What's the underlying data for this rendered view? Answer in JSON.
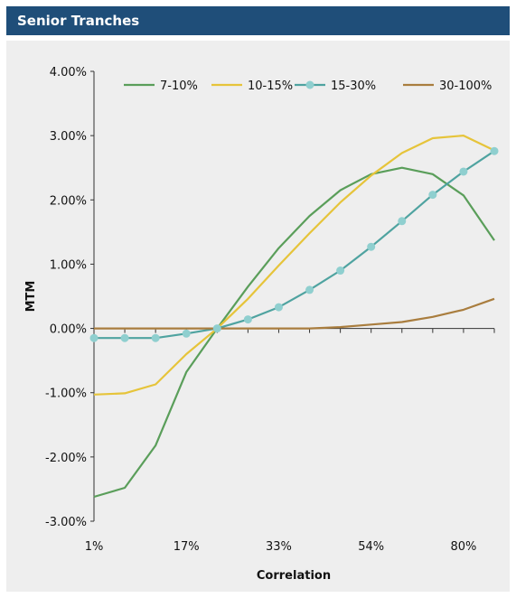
{
  "header": {
    "title": "Senior Tranches"
  },
  "chart_data": {
    "type": "line",
    "xlabel": "Correlation",
    "ylabel": "MTM",
    "y_ticks": [
      "4.00%",
      "3.00%",
      "2.00%",
      "1.00%",
      "0.00%",
      "-1.00%",
      "-2.00%",
      "-3.00%"
    ],
    "y_tick_values": [
      4,
      3,
      2,
      1,
      0,
      -1,
      -2,
      -3
    ],
    "ylim": [
      -3,
      4
    ],
    "x_tick_labels": [
      "1%",
      "17%",
      "33%",
      "54%",
      "80%"
    ],
    "x_tick_label_indices": [
      0,
      3,
      6,
      9,
      12
    ],
    "n_points": 14,
    "grid": false,
    "legend_position": "top",
    "series": [
      {
        "name": "7-10%",
        "color": "#5a9e5a",
        "marker": false,
        "values": [
          -2.62,
          -2.48,
          -1.82,
          -0.68,
          0.0,
          0.65,
          1.25,
          1.75,
          2.15,
          2.4,
          2.5,
          2.4,
          2.07,
          1.37
        ]
      },
      {
        "name": "10-15%",
        "color": "#e6c43a",
        "marker": false,
        "values": [
          -1.03,
          -1.01,
          -0.87,
          -0.4,
          0.0,
          0.46,
          0.98,
          1.48,
          1.96,
          2.38,
          2.73,
          2.96,
          3.0,
          2.77
        ]
      },
      {
        "name": "15-30%",
        "color": "#4fa3a0",
        "marker": true,
        "marker_color": "#8fcfcf",
        "values": [
          -0.15,
          -0.15,
          -0.15,
          -0.08,
          0.0,
          0.14,
          0.33,
          0.6,
          0.9,
          1.27,
          1.67,
          2.08,
          2.44,
          2.76
        ]
      },
      {
        "name": "30-100%",
        "color": "#a97d3e",
        "marker": false,
        "values": [
          0.0,
          0.0,
          0.0,
          0.0,
          0.0,
          0.0,
          0.0,
          0.0,
          0.02,
          0.06,
          0.1,
          0.18,
          0.29,
          0.46
        ]
      }
    ]
  }
}
